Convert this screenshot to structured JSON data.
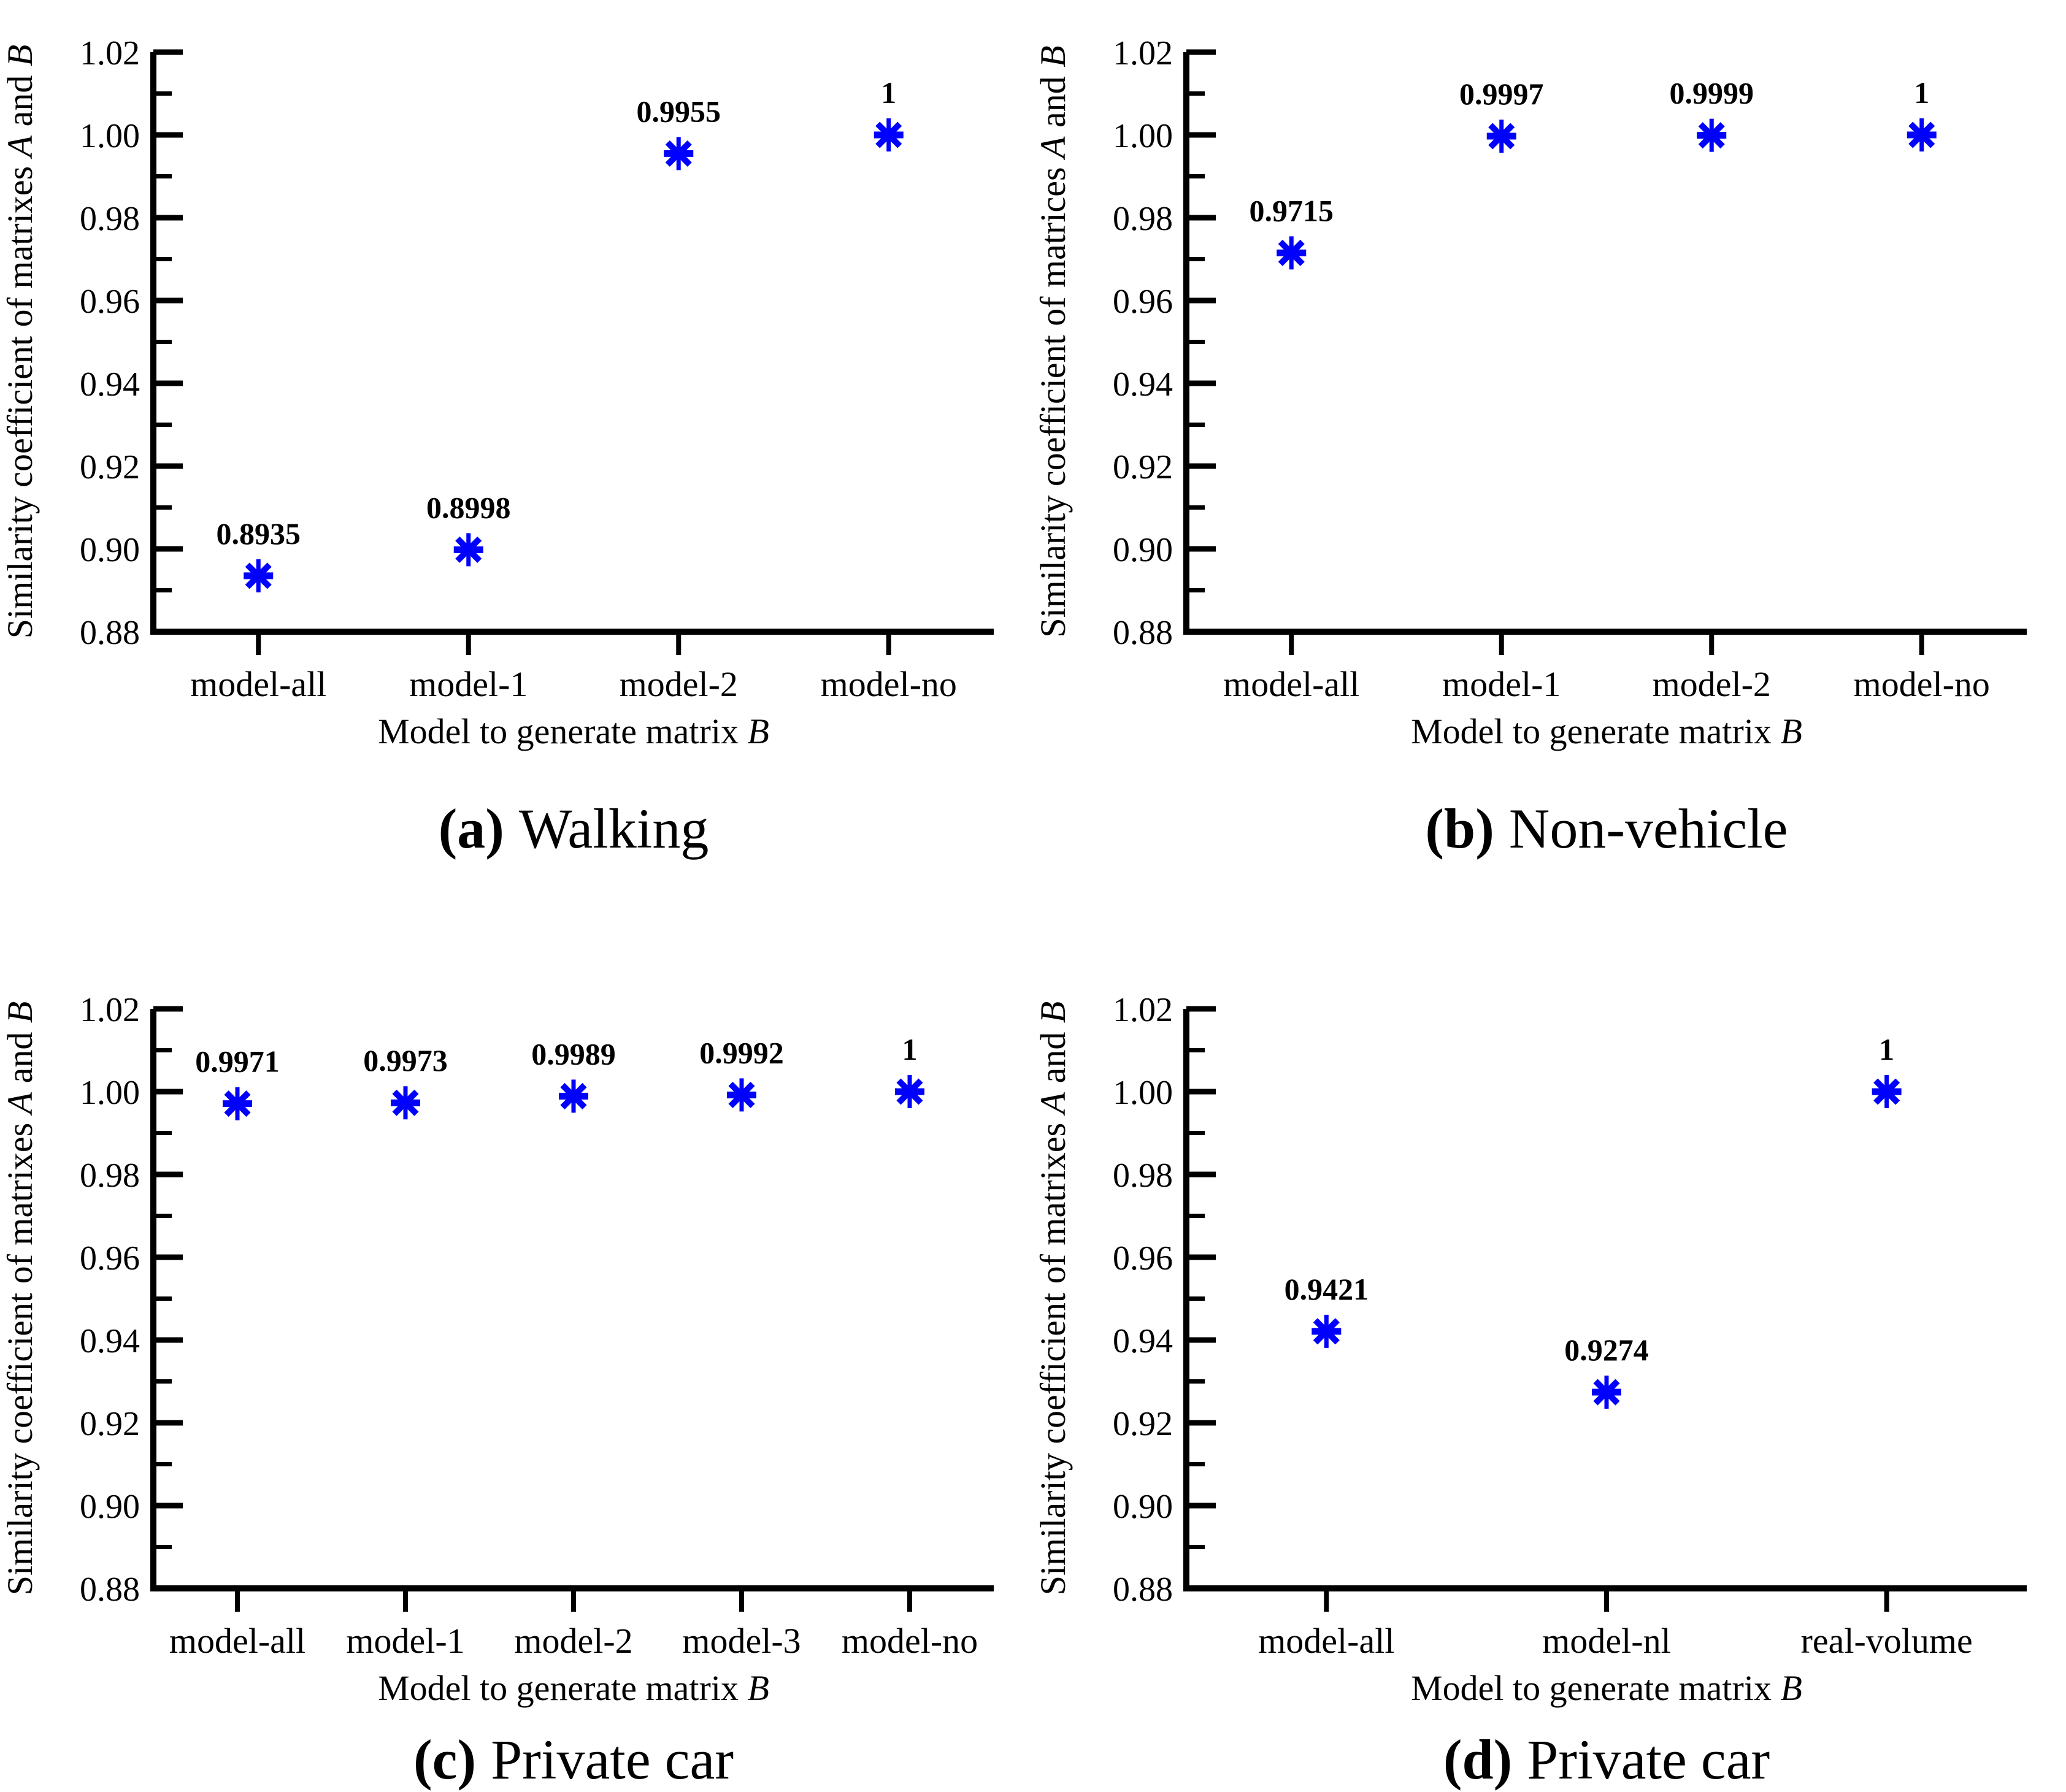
{
  "figure": {
    "background": "#ffffff",
    "axis_color": "#000000",
    "marker_color": "#0000ff",
    "value_label_color": "#ff0000",
    "x_title_parts": [
      "Model to generate matrix ",
      "B"
    ]
  },
  "chart_data": [
    {
      "type": "scatter",
      "panel": "a",
      "caption_prefix": "(a)",
      "caption_text": "Walking",
      "y_title_parts": [
        "Similarity coefficient of matrixes ",
        "A",
        " and ",
        "B"
      ],
      "categories": [
        "model-all",
        "model-1",
        "model-2",
        "model-no"
      ],
      "values": [
        0.8935,
        0.8998,
        0.9955,
        1
      ],
      "point_labels": [
        "0.8935",
        "0.8998",
        "0.9955",
        "1"
      ],
      "ylim": [
        0.88,
        1.02
      ],
      "ytick_step": 0.02,
      "yminor_step": 0.01,
      "grid": false,
      "marker": "asterisk"
    },
    {
      "type": "scatter",
      "panel": "b",
      "caption_prefix": "(b)",
      "caption_text": "Non-vehicle",
      "y_title_parts": [
        "Similarity coefficient of matrices ",
        "A",
        " and ",
        "B"
      ],
      "categories": [
        "model-all",
        "model-1",
        "model-2",
        "model-no"
      ],
      "values": [
        0.9715,
        0.9997,
        0.9999,
        1
      ],
      "point_labels": [
        "0.9715",
        "0.9997",
        "0.9999",
        "1"
      ],
      "ylim": [
        0.88,
        1.02
      ],
      "ytick_step": 0.02,
      "yminor_step": 0.01,
      "grid": false,
      "marker": "asterisk"
    },
    {
      "type": "scatter",
      "panel": "c",
      "caption_prefix": "(c)",
      "caption_text": "Private car",
      "y_title_parts": [
        "Similarity coefficient of matrixes ",
        "A",
        " and ",
        "B"
      ],
      "categories": [
        "model-all",
        "model-1",
        "model-2",
        "model-3",
        "model-no"
      ],
      "values": [
        0.9971,
        0.9973,
        0.9989,
        0.9992,
        1
      ],
      "point_labels": [
        "0.9971",
        "0.9973",
        "0.9989",
        "0.9992",
        "1"
      ],
      "ylim": [
        0.88,
        1.02
      ],
      "ytick_step": 0.02,
      "yminor_step": 0.01,
      "grid": false,
      "marker": "asterisk"
    },
    {
      "type": "scatter",
      "panel": "d",
      "caption_prefix": "(d)",
      "caption_text": "Private car",
      "y_title_parts": [
        "Similarity coefficient of matrixes ",
        "A",
        " and ",
        "B"
      ],
      "categories": [
        "model-all",
        "model-nl",
        "real-volume"
      ],
      "values": [
        0.9421,
        0.9274,
        1
      ],
      "point_labels": [
        "0.9421",
        "0.9274",
        "1"
      ],
      "ylim": [
        0.88,
        1.02
      ],
      "ytick_step": 0.02,
      "yminor_step": 0.01,
      "grid": false,
      "marker": "asterisk"
    }
  ]
}
